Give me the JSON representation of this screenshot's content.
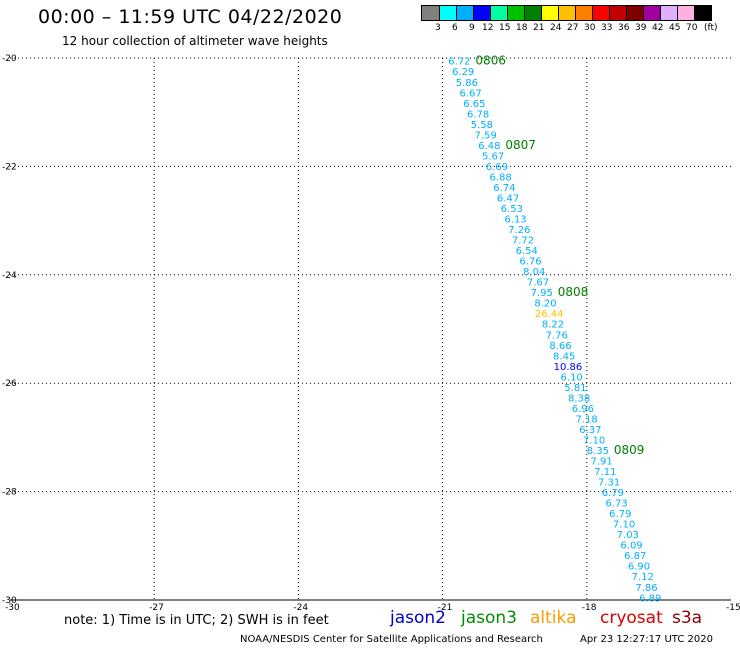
{
  "header": {
    "title": "00:00 – 11:59 UTC 04/22/2020",
    "subtitle": "12 hour collection of altimeter wave heights"
  },
  "colorbar": {
    "labels": [
      "3",
      "6",
      "9",
      "12",
      "15",
      "18",
      "21",
      "24",
      "27",
      "30",
      "33",
      "36",
      "39",
      "42",
      "45",
      "70"
    ],
    "unit": "(ft)",
    "colors": [
      "#808080",
      "#00ffff",
      "#00b0ff",
      "#0000ff",
      "#00ffa0",
      "#00c000",
      "#008000",
      "#ffff00",
      "#ffc000",
      "#ff8000",
      "#ff0000",
      "#c00000",
      "#800000",
      "#a000a0",
      "#e0b0ff",
      "#ffb0e0",
      "#000000"
    ]
  },
  "map": {
    "lon_ticks": [
      "-30",
      "-27",
      "-24",
      "-21",
      "-18",
      "-15"
    ],
    "lat_ticks": [
      "-20",
      "-22",
      "-24",
      "-26",
      "-28",
      "-30"
    ],
    "lon_range": [
      -30,
      -15
    ],
    "lat_range": [
      -30,
      -20
    ],
    "grid": true,
    "grid_style": "dotted"
  },
  "chart_data": {
    "type": "scatter",
    "x_axis": "longitude",
    "y_axis": "latitude",
    "track_start": [
      -20.65,
      -20.05
    ],
    "track_end": [
      -16.68,
      -29.95
    ],
    "wave_heights": [
      "6.72",
      "6.29",
      "5.86",
      "6.67",
      "6.65",
      "6.78",
      "5.58",
      "7.59",
      "6.48",
      "5.67",
      "6.69",
      "6.88",
      "6.74",
      "6.47",
      "6.53",
      "6.13",
      "7.26",
      "7.72",
      "6.54",
      "6.76",
      "8.04",
      "7.67",
      "7.95",
      "8.20",
      "26.44",
      "8.22",
      "7.76",
      "8.66",
      "8.45",
      "10.86",
      "6.10",
      "5.81",
      "8.38",
      "6.96",
      "7.18",
      "6.37",
      "7.10",
      "8.35",
      "7.91",
      "7.11",
      "7.31",
      "6.79",
      "6.73",
      "6.79",
      "7.10",
      "7.03",
      "6.09",
      "6.87",
      "6.90",
      "7.12",
      "7.86",
      "6.89"
    ],
    "highlight": [
      {
        "index": 24,
        "color": "#ffc000"
      },
      {
        "index": 29,
        "color": "#0000ff"
      }
    ],
    "default_color": "#00b0ff",
    "time_labels": [
      {
        "text": "0806",
        "index": 0
      },
      {
        "text": "0807",
        "index": 8
      },
      {
        "text": "0808",
        "index": 22
      },
      {
        "text": "0809",
        "index": 37
      }
    ],
    "time_label_color": "#008000"
  },
  "footer": {
    "note": "note: 1) Time is in UTC; 2) SWH is in feet",
    "satellites": [
      {
        "name": "jason2",
        "color": "#0000cc"
      },
      {
        "name": "jason3",
        "color": "#009000"
      },
      {
        "name": "altika",
        "color": "#ff9900"
      },
      {
        "name": "cryosat",
        "color": "#dd0000"
      },
      {
        "name": "s3a",
        "color": "#8b0000"
      }
    ],
    "credit": "NOAA/NESDIS Center for Satellite Applications and Research",
    "timestamp": "Apr 23 12:27:17 UTC 2020"
  }
}
